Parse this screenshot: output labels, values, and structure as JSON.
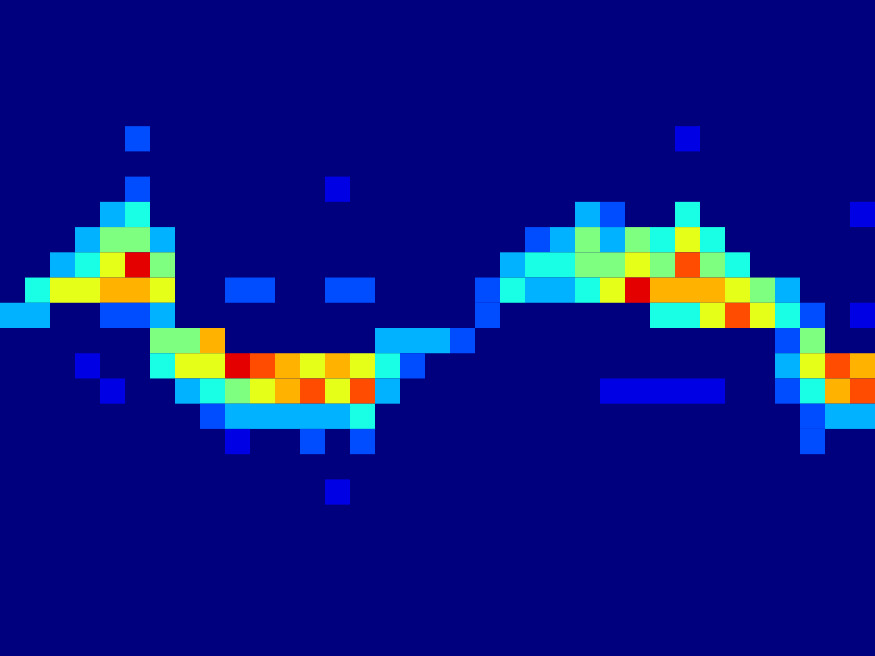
{
  "chart_data": {
    "type": "heatmap",
    "xlim": [
      0,
      35
    ],
    "ylim": [
      0,
      26
    ],
    "tick_labels": false,
    "grid": false,
    "color_range": [
      0,
      10
    ],
    "cells": [
      [
        0,
        12,
        3
      ],
      [
        1,
        11,
        4
      ],
      [
        1,
        12,
        3
      ],
      [
        2,
        10,
        3
      ],
      [
        2,
        11,
        6
      ],
      [
        3,
        9,
        3
      ],
      [
        3,
        10,
        4
      ],
      [
        3,
        11,
        6
      ],
      [
        3,
        14,
        1
      ],
      [
        4,
        8,
        3
      ],
      [
        4,
        9,
        5
      ],
      [
        4,
        10,
        6
      ],
      [
        4,
        11,
        7
      ],
      [
        4,
        12,
        2
      ],
      [
        4,
        15,
        1
      ],
      [
        5,
        5,
        2
      ],
      [
        5,
        7,
        2
      ],
      [
        5,
        8,
        4
      ],
      [
        5,
        9,
        5
      ],
      [
        5,
        10,
        9
      ],
      [
        5,
        11,
        7
      ],
      [
        5,
        12,
        2
      ],
      [
        6,
        9,
        3
      ],
      [
        6,
        10,
        5
      ],
      [
        6,
        11,
        6
      ],
      [
        6,
        12,
        3
      ],
      [
        6,
        13,
        5
      ],
      [
        6,
        14,
        4
      ],
      [
        7,
        13,
        5
      ],
      [
        7,
        14,
        6
      ],
      [
        7,
        15,
        3
      ],
      [
        8,
        13,
        7
      ],
      [
        8,
        14,
        6
      ],
      [
        8,
        15,
        4
      ],
      [
        8,
        16,
        2
      ],
      [
        9,
        11,
        2
      ],
      [
        9,
        14,
        9
      ],
      [
        9,
        15,
        5
      ],
      [
        9,
        16,
        3
      ],
      [
        9,
        17,
        1
      ],
      [
        10,
        11,
        2
      ],
      [
        10,
        14,
        8
      ],
      [
        10,
        15,
        6
      ],
      [
        10,
        16,
        3
      ],
      [
        11,
        14,
        7
      ],
      [
        11,
        15,
        7
      ],
      [
        11,
        16,
        3
      ],
      [
        12,
        14,
        6
      ],
      [
        12,
        15,
        8
      ],
      [
        12,
        16,
        3
      ],
      [
        12,
        17,
        2
      ],
      [
        13,
        7,
        1
      ],
      [
        13,
        11,
        2
      ],
      [
        13,
        14,
        7
      ],
      [
        13,
        15,
        6
      ],
      [
        13,
        16,
        3
      ],
      [
        13,
        19,
        1
      ],
      [
        14,
        11,
        2
      ],
      [
        14,
        14,
        6
      ],
      [
        14,
        15,
        8
      ],
      [
        14,
        16,
        4
      ],
      [
        14,
        17,
        2
      ],
      [
        15,
        13,
        3
      ],
      [
        15,
        14,
        4
      ],
      [
        15,
        15,
        3
      ],
      [
        16,
        13,
        3
      ],
      [
        16,
        14,
        2
      ],
      [
        17,
        13,
        3
      ],
      [
        18,
        13,
        2
      ],
      [
        19,
        11,
        2
      ],
      [
        19,
        12,
        2
      ],
      [
        20,
        10,
        3
      ],
      [
        20,
        11,
        4
      ],
      [
        21,
        9,
        2
      ],
      [
        21,
        10,
        4
      ],
      [
        21,
        11,
        3
      ],
      [
        22,
        9,
        3
      ],
      [
        22,
        10,
        4
      ],
      [
        22,
        11,
        3
      ],
      [
        23,
        8,
        3
      ],
      [
        23,
        9,
        5
      ],
      [
        23,
        10,
        5
      ],
      [
        23,
        11,
        4
      ],
      [
        24,
        8,
        2
      ],
      [
        24,
        9,
        3
      ],
      [
        24,
        10,
        5
      ],
      [
        24,
        11,
        6
      ],
      [
        24,
        15,
        1
      ],
      [
        25,
        9,
        5
      ],
      [
        25,
        10,
        6
      ],
      [
        25,
        11,
        9
      ],
      [
        25,
        15,
        1
      ],
      [
        26,
        9,
        4
      ],
      [
        26,
        10,
        5
      ],
      [
        26,
        11,
        7
      ],
      [
        26,
        12,
        4
      ],
      [
        26,
        15,
        1
      ],
      [
        27,
        5,
        1
      ],
      [
        27,
        8,
        4
      ],
      [
        27,
        9,
        6
      ],
      [
        27,
        10,
        8
      ],
      [
        27,
        11,
        7
      ],
      [
        27,
        12,
        4
      ],
      [
        27,
        15,
        1
      ],
      [
        28,
        9,
        4
      ],
      [
        28,
        10,
        5
      ],
      [
        28,
        11,
        7
      ],
      [
        28,
        12,
        6
      ],
      [
        28,
        15,
        1
      ],
      [
        29,
        10,
        4
      ],
      [
        29,
        11,
        6
      ],
      [
        29,
        12,
        8
      ],
      [
        30,
        11,
        5
      ],
      [
        30,
        12,
        6
      ],
      [
        31,
        11,
        3
      ],
      [
        31,
        12,
        4
      ],
      [
        31,
        13,
        2
      ],
      [
        31,
        14,
        3
      ],
      [
        31,
        15,
        2
      ],
      [
        32,
        12,
        2
      ],
      [
        32,
        13,
        5
      ],
      [
        32,
        14,
        6
      ],
      [
        32,
        15,
        4
      ],
      [
        32,
        16,
        2
      ],
      [
        32,
        17,
        2
      ],
      [
        33,
        14,
        8
      ],
      [
        33,
        15,
        7
      ],
      [
        33,
        16,
        3
      ],
      [
        34,
        8,
        1
      ],
      [
        34,
        12,
        1
      ],
      [
        34,
        14,
        7
      ],
      [
        34,
        15,
        8
      ],
      [
        34,
        16,
        3
      ]
    ]
  }
}
